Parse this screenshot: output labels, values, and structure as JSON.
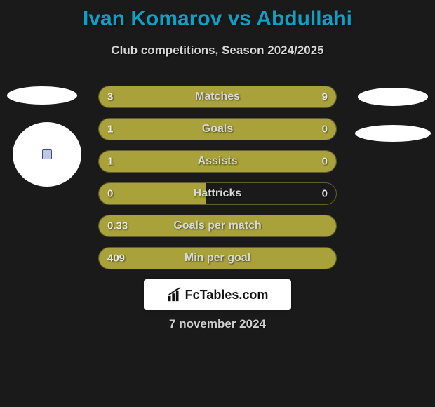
{
  "header": {
    "title": "Ivan Komarov vs Abdullahi",
    "title_color": "#0ea0c5",
    "title_fontsize": 30,
    "subtitle": "Club competitions, Season 2024/2025",
    "subtitle_color": "#d8d8d8",
    "subtitle_fontsize": 17
  },
  "background_color": "#1a1a1a",
  "bar_style": {
    "height": 32,
    "gap": 14,
    "radius": 16,
    "left_color": "#a9a23a",
    "right_color": "#a9a23a",
    "empty_color": "transparent",
    "border_color": "rgba(170,160,60,0.5)",
    "text_color": "#e8e8e8",
    "label_color": "#d8d8d8"
  },
  "stats": [
    {
      "label": "Matches",
      "left_value": "3",
      "right_value": "9",
      "left_pct": 22,
      "right_pct": 78,
      "left_fill": true,
      "right_fill": true
    },
    {
      "label": "Goals",
      "left_value": "1",
      "right_value": "0",
      "left_pct": 77,
      "right_pct": 23,
      "left_fill": true,
      "right_fill": true
    },
    {
      "label": "Assists",
      "left_value": "1",
      "right_value": "0",
      "left_pct": 77,
      "right_pct": 23,
      "left_fill": true,
      "right_fill": true
    },
    {
      "label": "Hattricks",
      "left_value": "0",
      "right_value": "0",
      "left_pct": 45,
      "right_pct": 0,
      "left_fill": true,
      "right_fill": false
    },
    {
      "label": "Goals per match",
      "left_value": "0.33",
      "right_value": "",
      "left_pct": 100,
      "right_pct": 0,
      "left_fill": true,
      "right_fill": false
    },
    {
      "label": "Min per goal",
      "left_value": "409",
      "right_value": "",
      "left_pct": 100,
      "right_pct": 0,
      "left_fill": true,
      "right_fill": false
    }
  ],
  "logo": {
    "text": "FcTables.com",
    "bg_color": "#ffffff",
    "text_color": "#111111"
  },
  "footer": {
    "date": "7 november 2024",
    "color": "#d0d0d0"
  },
  "side_shapes": {
    "ellipse_color": "#ffffff"
  }
}
